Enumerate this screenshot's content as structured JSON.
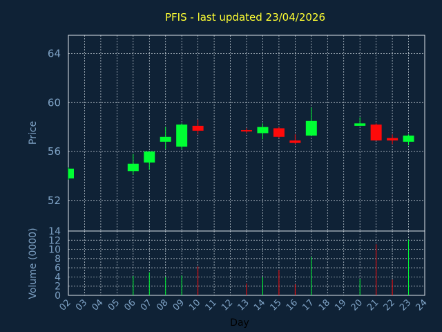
{
  "chart_data": {
    "type": "candlestick",
    "title": "PFIS - last updated 23/04/2026",
    "xlabel": "Day",
    "price_panel": {
      "ylabel": "Price",
      "ylim": [
        49.5,
        65.5
      ],
      "yticks": [
        52,
        56,
        60,
        64
      ],
      "grid": true
    },
    "volume_panel": {
      "ylabel": "Volume (0000)",
      "ylim": [
        0,
        14
      ],
      "yticks": [
        0,
        2,
        4,
        6,
        8,
        10,
        12,
        14
      ],
      "grid": true
    },
    "x_ticks": [
      "02",
      "03",
      "04",
      "05",
      "06",
      "07",
      "08",
      "09",
      "10",
      "11",
      "12",
      "13",
      "14",
      "15",
      "16",
      "17",
      "18",
      "19",
      "20",
      "21",
      "22",
      "23",
      "24"
    ],
    "candles": [
      {
        "day": "02",
        "open": 53.8,
        "high": 54.7,
        "low": 53.7,
        "close": 54.6,
        "volume": 0
      },
      {
        "day": "06",
        "open": 54.4,
        "high": 55.8,
        "low": 54.1,
        "close": 55.0,
        "volume": 4.2
      },
      {
        "day": "07",
        "open": 55.1,
        "high": 56.0,
        "low": 54.5,
        "close": 56.0,
        "volume": 5.0
      },
      {
        "day": "08",
        "open": 56.8,
        "high": 58.0,
        "low": 56.2,
        "close": 57.2,
        "volume": 4.0
      },
      {
        "day": "09",
        "open": 56.4,
        "high": 58.3,
        "low": 56.2,
        "close": 58.2,
        "volume": 4.3
      },
      {
        "day": "10",
        "open": 58.1,
        "high": 58.6,
        "low": 57.4,
        "close": 57.7,
        "volume": 6.3
      },
      {
        "day": "13",
        "open": 57.75,
        "high": 57.9,
        "low": 57.5,
        "close": 57.7,
        "volume": 2.6
      },
      {
        "day": "14",
        "open": 57.5,
        "high": 58.3,
        "low": 57.0,
        "close": 58.0,
        "volume": 4.0
      },
      {
        "day": "15",
        "open": 57.9,
        "high": 58.0,
        "low": 57.1,
        "close": 57.2,
        "volume": 5.5
      },
      {
        "day": "16",
        "open": 56.9,
        "high": 57.4,
        "low": 56.6,
        "close": 56.7,
        "volume": 2.4
      },
      {
        "day": "17",
        "open": 57.3,
        "high": 59.6,
        "low": 57.3,
        "close": 58.5,
        "volume": 8.4
      },
      {
        "day": "20",
        "open": 58.1,
        "high": 58.8,
        "low": 58.1,
        "close": 58.3,
        "volume": 3.6
      },
      {
        "day": "21",
        "open": 58.2,
        "high": 58.3,
        "low": 56.9,
        "close": 56.9,
        "volume": 11.1
      },
      {
        "day": "22",
        "open": 57.1,
        "high": 57.4,
        "low": 56.6,
        "close": 56.9,
        "volume": 3.4
      },
      {
        "day": "23",
        "open": 56.8,
        "high": 57.4,
        "low": 56.5,
        "close": 57.3,
        "volume": 12.1
      }
    ]
  },
  "colors": {
    "background": "#0f2236",
    "up": "#00ff33",
    "down": "#ff0a0a",
    "grid": "#cfd8e0",
    "frame": "#dfe6ec",
    "tick_text": "#7fa3c6",
    "title_text": "#ffff33"
  }
}
